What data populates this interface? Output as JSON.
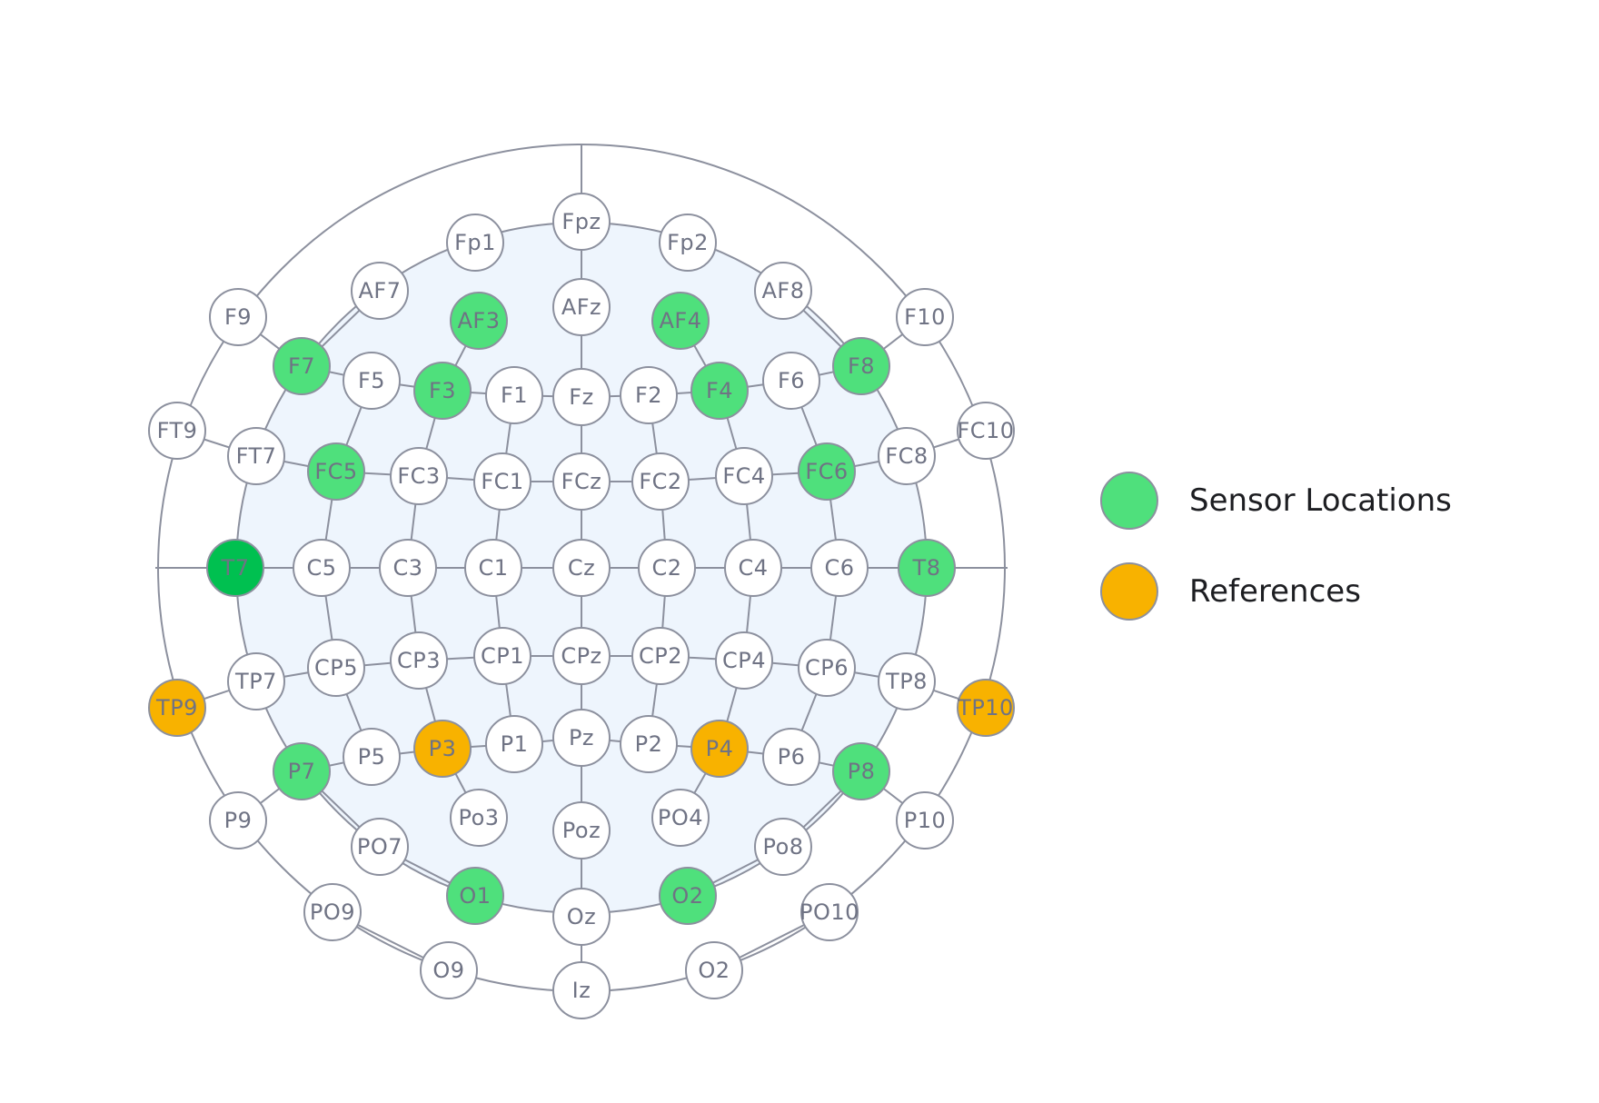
{
  "colors": {
    "sensor": "#4fe07c",
    "sensor_dark": "#00c050",
    "reference": "#f8b200",
    "default": "#ffffff"
  },
  "legend": [
    {
      "label": "Sensor Locations",
      "role": "sensor"
    },
    {
      "label": "References",
      "role": "reference"
    }
  ],
  "electrodes": [
    {
      "label": "Fpz",
      "role": "default"
    },
    {
      "label": "Fp1",
      "role": "default"
    },
    {
      "label": "Fp2",
      "role": "default"
    },
    {
      "label": "AF7",
      "role": "default"
    },
    {
      "label": "AF8",
      "role": "default"
    },
    {
      "label": "AFz",
      "role": "default"
    },
    {
      "label": "AF3",
      "role": "sensor"
    },
    {
      "label": "AF4",
      "role": "sensor"
    },
    {
      "label": "F9",
      "role": "default"
    },
    {
      "label": "F10",
      "role": "default"
    },
    {
      "label": "F7",
      "role": "sensor"
    },
    {
      "label": "F5",
      "role": "default"
    },
    {
      "label": "F3",
      "role": "sensor"
    },
    {
      "label": "F1",
      "role": "default"
    },
    {
      "label": "Fz",
      "role": "default"
    },
    {
      "label": "F2",
      "role": "default"
    },
    {
      "label": "F4",
      "role": "sensor"
    },
    {
      "label": "F6",
      "role": "default"
    },
    {
      "label": "F8",
      "role": "sensor"
    },
    {
      "label": "FT9",
      "role": "default"
    },
    {
      "label": "FT7",
      "role": "default"
    },
    {
      "label": "FC5",
      "role": "sensor"
    },
    {
      "label": "FC3",
      "role": "default"
    },
    {
      "label": "FC1",
      "role": "default"
    },
    {
      "label": "FCz",
      "role": "default"
    },
    {
      "label": "FC2",
      "role": "default"
    },
    {
      "label": "FC4",
      "role": "default"
    },
    {
      "label": "FC6",
      "role": "sensor"
    },
    {
      "label": "FC8",
      "role": "default"
    },
    {
      "label": "FC10",
      "role": "default"
    },
    {
      "label": "T7",
      "role": "sensor_dark"
    },
    {
      "label": "C5",
      "role": "default"
    },
    {
      "label": "C3",
      "role": "default"
    },
    {
      "label": "C1",
      "role": "default"
    },
    {
      "label": "Cz",
      "role": "default"
    },
    {
      "label": "C2",
      "role": "default"
    },
    {
      "label": "C4",
      "role": "default"
    },
    {
      "label": "C6",
      "role": "default"
    },
    {
      "label": "T8",
      "role": "sensor"
    },
    {
      "label": "TP9",
      "role": "reference"
    },
    {
      "label": "TP7",
      "role": "default"
    },
    {
      "label": "CP5",
      "role": "default"
    },
    {
      "label": "CP3",
      "role": "default"
    },
    {
      "label": "CP1",
      "role": "default"
    },
    {
      "label": "CPz",
      "role": "default"
    },
    {
      "label": "CP2",
      "role": "default"
    },
    {
      "label": "CP4",
      "role": "default"
    },
    {
      "label": "CP6",
      "role": "default"
    },
    {
      "label": "TP8",
      "role": "default"
    },
    {
      "label": "TP10",
      "role": "reference"
    },
    {
      "label": "P9",
      "role": "default"
    },
    {
      "label": "P7",
      "role": "sensor"
    },
    {
      "label": "P5",
      "role": "default"
    },
    {
      "label": "P3",
      "role": "reference"
    },
    {
      "label": "P1",
      "role": "default"
    },
    {
      "label": "Pz",
      "role": "default"
    },
    {
      "label": "P2",
      "role": "default"
    },
    {
      "label": "P4",
      "role": "reference"
    },
    {
      "label": "P6",
      "role": "default"
    },
    {
      "label": "P8",
      "role": "sensor"
    },
    {
      "label": "P10",
      "role": "default"
    },
    {
      "label": "PO7",
      "role": "default"
    },
    {
      "label": "Po3",
      "role": "default"
    },
    {
      "label": "Poz",
      "role": "default"
    },
    {
      "label": "PO4",
      "role": "default"
    },
    {
      "label": "Po8",
      "role": "default"
    },
    {
      "label": "PO9",
      "role": "default"
    },
    {
      "label": "O1",
      "role": "sensor"
    },
    {
      "label": "Oz",
      "role": "default"
    },
    {
      "label": "O2",
      "role": "sensor"
    },
    {
      "label": "PO10",
      "role": "default"
    },
    {
      "label": "O9",
      "role": "default"
    },
    {
      "label": "Iz",
      "role": "default"
    },
    {
      "label": "O2",
      "role": "default"
    }
  ]
}
